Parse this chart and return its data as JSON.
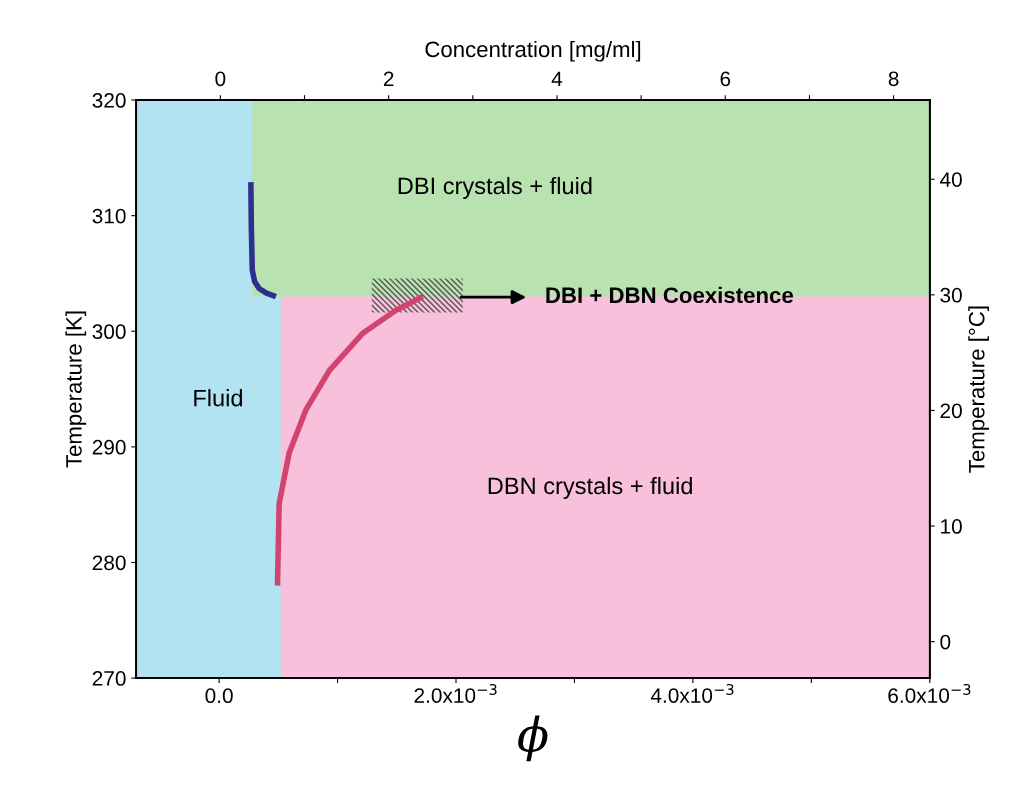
{
  "chart_data": {
    "type": "area",
    "xlabel": "ϕ",
    "x2label": "Concentration [mg/ml]",
    "ylabel": "Temperature [K]",
    "y2label": "Temperature [°C]",
    "xlim": [
      -0.0007,
      0.006
    ],
    "xticks": [
      {
        "value": 0,
        "label": "0.0"
      },
      {
        "value": 0.001,
        "label": null
      },
      {
        "value": 0.002,
        "label": "2.0x10$^{−3}$"
      },
      {
        "value": 0.003,
        "label": null
      },
      {
        "value": 0.004,
        "label": "4.0x10$^{−3}$"
      },
      {
        "value": 0.005,
        "label": null
      },
      {
        "value": 0.006,
        "label": "6.0x10$^{−3}$"
      }
    ],
    "x2lim": [
      -1.0,
      8.43
    ],
    "x2ticks": [
      0,
      {
        "value": 1,
        "label": null
      },
      2,
      {
        "value": 3,
        "label": null
      },
      4,
      {
        "value": 5,
        "label": null
      },
      6,
      {
        "value": 7,
        "label": null
      },
      8
    ],
    "ylim": [
      270,
      320
    ],
    "yticks": [
      270,
      280,
      290,
      300,
      310,
      320
    ],
    "y2lim": [
      -3.15,
      46.85
    ],
    "y2ticks": [
      0,
      10,
      20,
      30,
      40
    ],
    "grid": false,
    "legend": false,
    "series": [
      {
        "color": "#b1e3f3",
        "x": [
          -0.0007,
          0.006
        ],
        "values": [
          320,
          320
        ]
      },
      {
        "color": "#b8e2b0",
        "x": [
          0.00028,
          0.006
        ],
        "values": [
          320,
          320
        ]
      },
      {
        "color": "#b1e3f3",
        "x": [
          0.00028,
          0.00052
        ],
        "values": [
          303,
          303
        ]
      },
      {
        "color": "#f8c0da",
        "x": [
          0.00052,
          0.006
        ],
        "values": [
          303,
          303
        ]
      },
      {
        "type": "line",
        "color": "#2e2f8e",
        "x": [
          0.000268,
          0.000272,
          0.00028,
          0.0003,
          0.000338,
          0.0004,
          0.00048
        ],
        "values": [
          312.9,
          309,
          305.3,
          304.3,
          303.7,
          303.3,
          303.0
        ]
      },
      {
        "type": "line",
        "color": "#d0446e",
        "x": [
          0.000493,
          0.000507,
          0.000592,
          0.000733,
          0.00093,
          0.00121,
          0.00149,
          0.00172
        ],
        "values": [
          278.0,
          285.1,
          289.5,
          293.2,
          296.6,
          299.8,
          301.8,
          303.0
        ]
      }
    ],
    "annotations": [
      "Fluid",
      "DBI crystals + fluid",
      "DBN crystals + fluid",
      "DBI + DBN Coexistence"
    ]
  }
}
